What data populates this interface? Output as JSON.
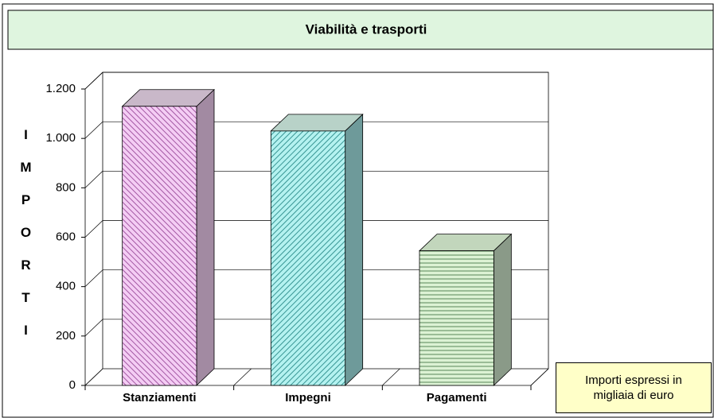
{
  "chart_data": {
    "type": "bar3d",
    "title": "Viabilità e trasporti",
    "y_label": "IMPORTI",
    "categories": [
      "Stanziamenti",
      "Impegni",
      "Pagamenti"
    ],
    "values": [
      1130,
      1030,
      545
    ],
    "colors": [
      "#f4cdf4",
      "#b4f2f0",
      "#dcf2d4"
    ],
    "ylim": [
      0,
      1200
    ],
    "yticks": [
      0,
      200,
      400,
      600,
      800,
      {
        "value": 1000,
        "label": "1.000"
      },
      {
        "value": 1200,
        "label": "1.200"
      }
    ],
    "grid": true,
    "annotation": "Importi espressi in migliaia di euro"
  }
}
